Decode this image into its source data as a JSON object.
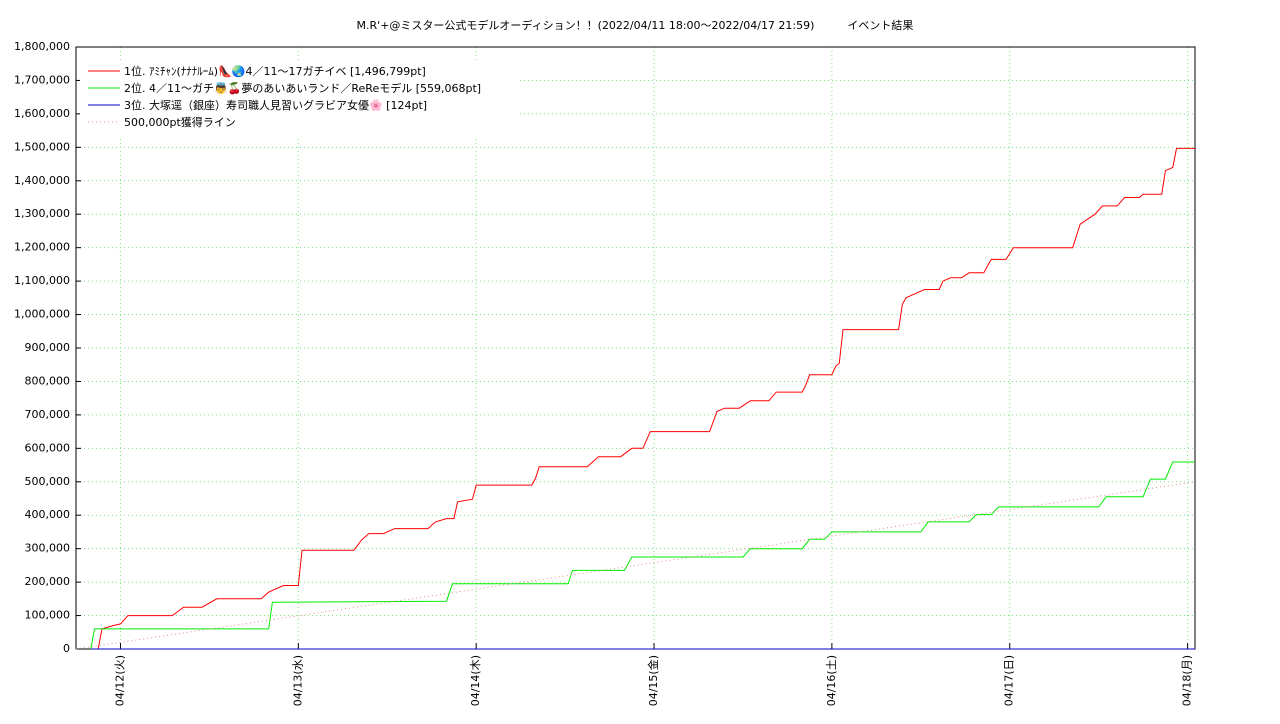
{
  "chart_data": {
    "type": "line",
    "title": "M.R'+@ミスター公式モデルオーディション！！(2022/04/11 18:00〜2022/04/17 21:59)　　　イベント結果",
    "xlim": [
      -6,
      145
    ],
    "xticks": [
      {
        "value": 0,
        "label": "04/12(火)"
      },
      {
        "value": 24,
        "label": "04/13(水)"
      },
      {
        "value": 48,
        "label": "04/14(木)"
      },
      {
        "value": 72,
        "label": "04/15(金)"
      },
      {
        "value": 96,
        "label": "04/16(土)"
      },
      {
        "value": 120,
        "label": "04/17(日)"
      },
      {
        "value": 144,
        "label": "04/18(月)"
      }
    ],
    "ylim": [
      0,
      1800000
    ],
    "yticks": [
      {
        "value": 0,
        "label": "0"
      },
      {
        "value": 100000,
        "label": "100,000"
      },
      {
        "value": 200000,
        "label": "200,000"
      },
      {
        "value": 300000,
        "label": "300,000"
      },
      {
        "value": 400000,
        "label": "400,000"
      },
      {
        "value": 500000,
        "label": "500,000"
      },
      {
        "value": 600000,
        "label": "600,000"
      },
      {
        "value": 700000,
        "label": "700,000"
      },
      {
        "value": 800000,
        "label": "800,000"
      },
      {
        "value": 900000,
        "label": "900,000"
      },
      {
        "value": 1000000,
        "label": "1,000,000"
      },
      {
        "value": 1100000,
        "label": "1,100,000"
      },
      {
        "value": 1200000,
        "label": "1,200,000"
      },
      {
        "value": 1300000,
        "label": "1,300,000"
      },
      {
        "value": 1400000,
        "label": "1,400,000"
      },
      {
        "value": 1500000,
        "label": "1,500,000"
      },
      {
        "value": 1600000,
        "label": "1,600,000"
      },
      {
        "value": 1700000,
        "label": "1,700,000"
      },
      {
        "value": 1800000,
        "label": "1,800,000"
      }
    ],
    "grid": true,
    "legend": "upper left",
    "series": [
      {
        "name": "1位. ｱﾐﾁｬﾝ(ﾅﾅﾅﾙｰﾑ)👠🌏4／11〜17ガチイベ [1,496,799pt]",
        "color": "#ff0000",
        "style": "solid",
        "x": [
          -3,
          -2.5,
          -1,
          0,
          1,
          7,
          8.5,
          11,
          13,
          19,
          20,
          22,
          24,
          24.5,
          31.5,
          32.5,
          33.5,
          35.5,
          37,
          41.5,
          42.5,
          44,
          45,
          45.5,
          47.5,
          48,
          55.5,
          56,
          56.5,
          63,
          64.5,
          67.5,
          69,
          70.5,
          71.5,
          79.5,
          80.5,
          81.5,
          83.5,
          84.5,
          85,
          87.5,
          88.5,
          92,
          92.5,
          93,
          96,
          96.5,
          97,
          97.5,
          105,
          105.5,
          106,
          107.5,
          108.5,
          110.5,
          111,
          112,
          113.5,
          114.5,
          116.5,
          117.5,
          119.5,
          120.5,
          128.5,
          129,
          129.5,
          130.5,
          131.5,
          132.5,
          134.5,
          135.5,
          137.5,
          138,
          140.5,
          141,
          142,
          142.5,
          145
        ],
        "values": [
          0,
          60000,
          70000,
          75000,
          100000,
          100000,
          125000,
          125000,
          150000,
          150000,
          170000,
          190000,
          190000,
          295000,
          295000,
          325000,
          345000,
          345000,
          360000,
          360000,
          380000,
          390000,
          390000,
          440000,
          448000,
          490000,
          490000,
          510000,
          545000,
          545000,
          575000,
          575000,
          600000,
          600000,
          650000,
          650000,
          710000,
          720000,
          720000,
          735000,
          742000,
          742000,
          768000,
          768000,
          790000,
          820000,
          820000,
          845000,
          855000,
          955000,
          955000,
          1030000,
          1050000,
          1065000,
          1075000,
          1075000,
          1100000,
          1110000,
          1110000,
          1125000,
          1125000,
          1165000,
          1165000,
          1200000,
          1200000,
          1235000,
          1270000,
          1285000,
          1300000,
          1325000,
          1325000,
          1350000,
          1350000,
          1360000,
          1360000,
          1430000,
          1440000,
          1496799,
          1496799
        ]
      },
      {
        "name": "2位. 4／11〜ガチ👼🍒夢のあいあいランド／ReReモデル [559,068pt]",
        "color": "#00ee00",
        "style": "solid",
        "x": [
          -4,
          -3.5,
          20,
          20.5,
          44,
          44.8,
          60.4,
          61,
          68,
          69,
          84,
          85,
          92,
          93,
          95,
          96,
          108,
          109,
          114.5,
          115.5,
          117.5,
          118.5,
          132,
          133,
          138,
          139,
          141,
          142,
          145
        ],
        "values": [
          0,
          60000,
          60000,
          140000,
          143000,
          195000,
          195000,
          235000,
          235000,
          275000,
          275000,
          300000,
          300000,
          328000,
          328000,
          350000,
          350000,
          380000,
          380000,
          402000,
          402000,
          425000,
          425000,
          455000,
          455000,
          508000,
          508000,
          559068,
          559068
        ]
      },
      {
        "name": "3位. 大塚逕（銀座）寿司職人見習いグラビア女優🌸 [124pt]",
        "color": "#0000cc",
        "style": "solid",
        "x": [
          -4,
          145
        ],
        "values": [
          0,
          124
        ]
      },
      {
        "name": "500,000pt獲得ライン",
        "color": "#e08a8a",
        "style": "dotted",
        "x": [
          -6,
          145
        ],
        "values": [
          0,
          500000
        ]
      }
    ]
  }
}
